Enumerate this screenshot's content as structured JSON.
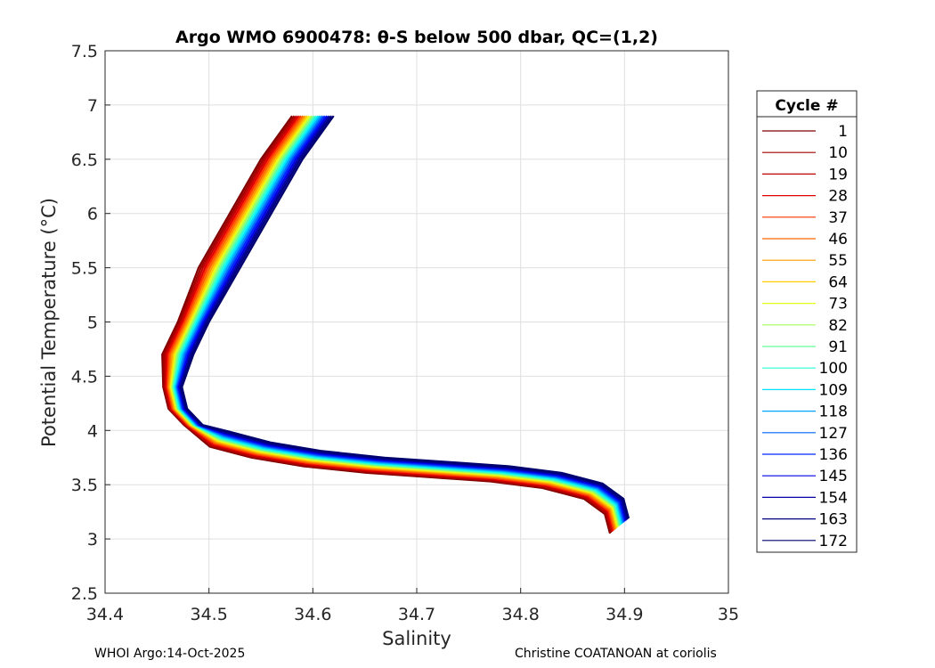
{
  "chart_data": {
    "type": "line",
    "title": "Argo WMO 6900478: θ-S below 500 dbar,  QC=(1,2)",
    "xlabel": "Salinity",
    "ylabel": "Potential Temperature (°C)",
    "xlim": [
      34.4,
      35.0
    ],
    "ylim": [
      2.5,
      7.5
    ],
    "xticks": [
      "34.4",
      "34.5",
      "34.6",
      "34.7",
      "34.8",
      "34.9",
      "35"
    ],
    "yticks": [
      "2.5",
      "3",
      "3.5",
      "4",
      "4.5",
      "5",
      "5.5",
      "6",
      "6.5",
      "7",
      "7.5"
    ],
    "grid": true,
    "legend": {
      "title": "Cycle #",
      "placement": "outside-right",
      "entries": [
        "1",
        "10",
        "19",
        "28",
        "37",
        "46",
        "55",
        "64",
        "73",
        "82",
        "91",
        "100",
        "109",
        "118",
        "127",
        "136",
        "145",
        "154",
        "163",
        "172"
      ],
      "colors": [
        "#800000",
        "#a00000",
        "#c00000",
        "#e00000",
        "#ff3300",
        "#ff6600",
        "#ff9900",
        "#ffcc00",
        "#e6ff1a",
        "#a6ff59",
        "#66ff99",
        "#26ffd9",
        "#00e6ff",
        "#00a6ff",
        "#0066ff",
        "#0026ff",
        "#0000e6",
        "#0000a6",
        "#000080",
        "#00006e"
      ]
    },
    "series_shape": {
      "description": "theta-S profiles, one per cycle; representative curve per legend cycle",
      "base_curve_S": [
        34.6,
        34.57,
        34.54,
        34.51,
        34.485,
        34.47,
        34.465,
        34.47,
        34.485,
        34.51,
        34.55,
        34.6,
        34.66,
        34.72,
        34.78,
        34.83,
        34.87,
        34.89,
        34.895
      ],
      "base_curve_T": [
        6.9,
        6.5,
        6.0,
        5.5,
        5.0,
        4.7,
        4.4,
        4.2,
        4.05,
        3.92,
        3.82,
        3.74,
        3.68,
        3.64,
        3.6,
        3.54,
        3.44,
        3.3,
        3.12
      ]
    }
  },
  "footer": {
    "left": "WHOI Argo:14-Oct-2025",
    "right": "Christine COATANOAN at coriolis"
  }
}
